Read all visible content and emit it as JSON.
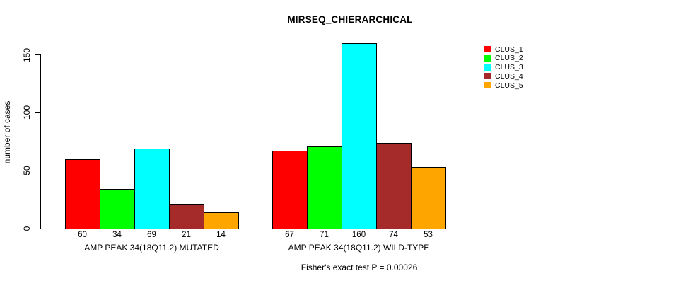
{
  "chart_data": {
    "type": "bar",
    "title": "MIRSEQ_CHIERARCHICAL",
    "xlabel": "",
    "ylabel": "number of cases",
    "ylim": [
      0,
      160
    ],
    "yticks": [
      0,
      50,
      100,
      150
    ],
    "grid": false,
    "legend_position": "right-outside-top",
    "series": [
      {
        "name": "CLUS_1",
        "color": "#FF0000",
        "values": [
          60,
          67
        ]
      },
      {
        "name": "CLUS_2",
        "color": "#00FF00",
        "values": [
          34,
          71
        ]
      },
      {
        "name": "CLUS_3",
        "color": "#00FFFF",
        "values": [
          69,
          160
        ]
      },
      {
        "name": "CLUS_4",
        "color": "#A52A2A",
        "values": [
          21,
          74
        ]
      },
      {
        "name": "CLUS_5",
        "color": "#FFA500",
        "values": [
          14,
          53
        ]
      }
    ],
    "groups": [
      {
        "label": "AMP PEAK 34(18Q11.2) MUTATED",
        "values": [
          60,
          34,
          69,
          21,
          14
        ],
        "value_labels": [
          "60",
          "34",
          "69",
          "21",
          "14"
        ]
      },
      {
        "label": "AMP PEAK 34(18Q11.2) WILD-TYPE",
        "values": [
          67,
          71,
          160,
          74,
          53
        ],
        "value_labels": [
          "67",
          "71",
          "160",
          "74",
          "53"
        ]
      }
    ],
    "annotation": "Fisher's exact test P = 0.00026",
    "bar_border_color": "#000000",
    "background_color": "#FFFFFF"
  }
}
